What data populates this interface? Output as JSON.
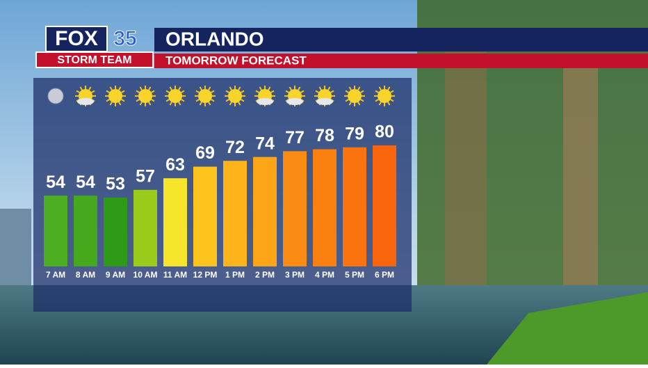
{
  "header": {
    "logo_network": "FOX",
    "logo_number": "35",
    "logo_team": "STORM TEAM",
    "city": "ORLANDO",
    "subtitle": "TOMORROW FORECAST"
  },
  "chart_data": {
    "type": "bar",
    "categories": [
      "7 AM",
      "8 AM",
      "9 AM",
      "10 AM",
      "11 AM",
      "12 PM",
      "1 PM",
      "2 PM",
      "3 PM",
      "4 PM",
      "5 PM",
      "6 PM"
    ],
    "values": [
      54,
      54,
      53,
      57,
      63,
      69,
      72,
      74,
      77,
      78,
      79,
      80
    ],
    "colors": [
      "#4cae20",
      "#46a91d",
      "#2f9918",
      "#9acb1b",
      "#f6e52a",
      "#fcc41d",
      "#fdb31a",
      "#fca617",
      "#fb8c13",
      "#fa8010",
      "#fa730e",
      "#f9650c"
    ]
  }
}
